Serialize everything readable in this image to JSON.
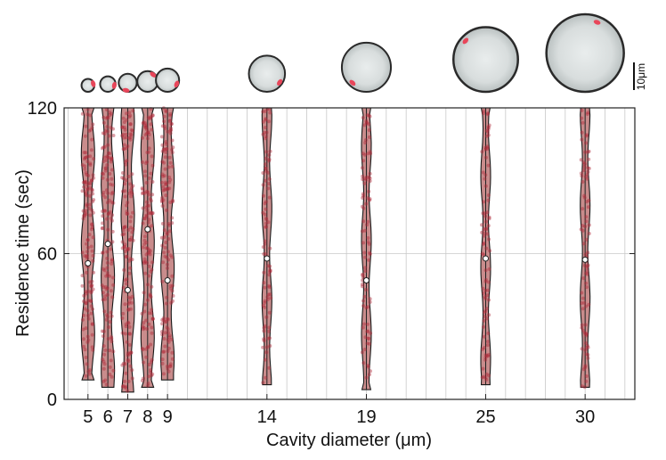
{
  "chart_data": {
    "type": "violin",
    "xlabel": "Cavity diameter (μm)",
    "ylabel": "Residence time (sec)",
    "ylim": [
      0,
      120
    ],
    "yticks": [
      0,
      60,
      120
    ],
    "xlim": [
      3.8,
      32.5
    ],
    "categories": [
      5,
      6,
      7,
      8,
      9,
      14,
      19,
      25,
      30
    ],
    "tick_labels": [
      "5",
      "6",
      "7",
      "8",
      "9",
      "14",
      "19",
      "25",
      "30"
    ],
    "medians": [
      56,
      64,
      45,
      70,
      49,
      58,
      49,
      58,
      57.5
    ],
    "min_values": [
      8,
      5,
      3,
      5,
      8,
      6,
      4,
      6,
      5
    ],
    "max_values": [
      120,
      120,
      120,
      120,
      120,
      120,
      120,
      120,
      120
    ],
    "grid_vertical": true,
    "grid_horizontal_at": [
      60
    ],
    "scale_bar_label": "10μm",
    "colors": {
      "violin_fill": "#c98c8c",
      "violin_stroke": "#1a1a1a",
      "points": "#b02a3a",
      "median": "#ffffff",
      "grid": "#c8c8c8",
      "cell_highlight": "#e8465a"
    }
  }
}
